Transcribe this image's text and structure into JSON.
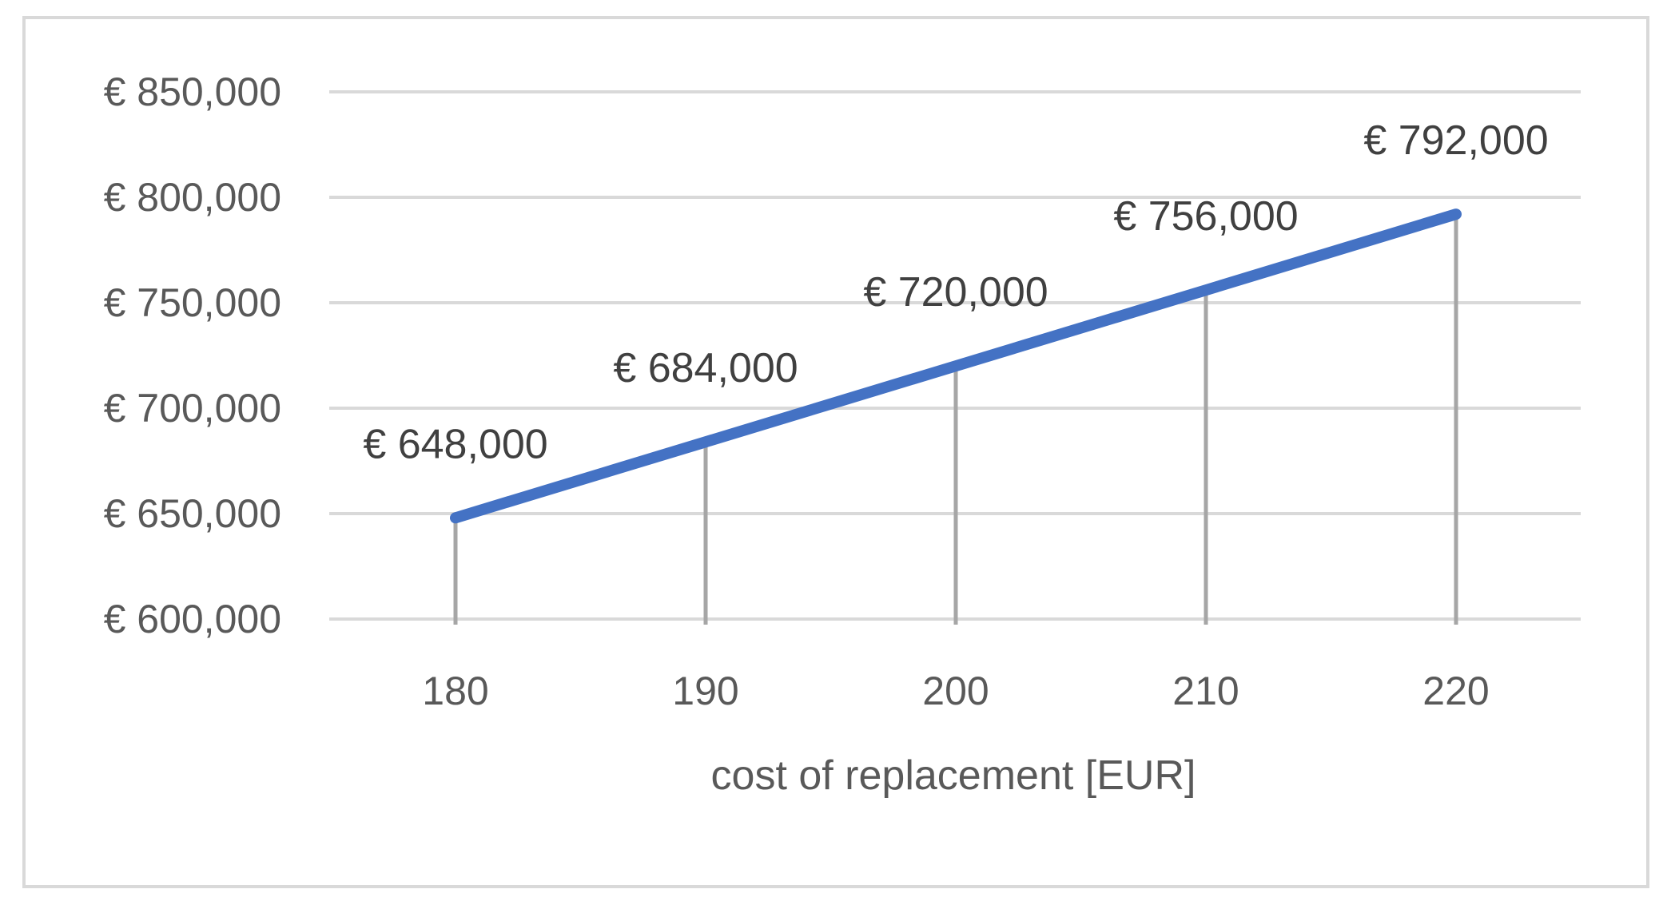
{
  "chart_data": {
    "type": "line",
    "title": "",
    "xlabel": "cost of replacement [EUR]",
    "ylabel": "",
    "x": [
      180,
      190,
      200,
      210,
      220
    ],
    "x_tick_labels": [
      "180",
      "190",
      "200",
      "210",
      "220"
    ],
    "series": [
      {
        "values": [
          648000,
          684000,
          720000,
          756000,
          792000
        ],
        "data_labels": [
          "€ 648,000",
          "€ 684,000",
          "€ 720,000",
          "€ 756,000",
          "€ 792,000"
        ],
        "color": "#4472c4"
      }
    ],
    "ylim": [
      600000,
      850000
    ],
    "y_ticks": [
      600000,
      650000,
      700000,
      750000,
      800000,
      850000
    ],
    "y_tick_labels": [
      "€ 600,000",
      "€ 650,000",
      "€ 700,000",
      "€ 750,000",
      "€ 800,000",
      "€ 850,000"
    ],
    "grid": true,
    "drop_lines": true,
    "legend": "none",
    "colors": {
      "grid": "#d9d9d9",
      "drop_line": "#a6a6a6",
      "border": "#d9d9d9"
    }
  }
}
